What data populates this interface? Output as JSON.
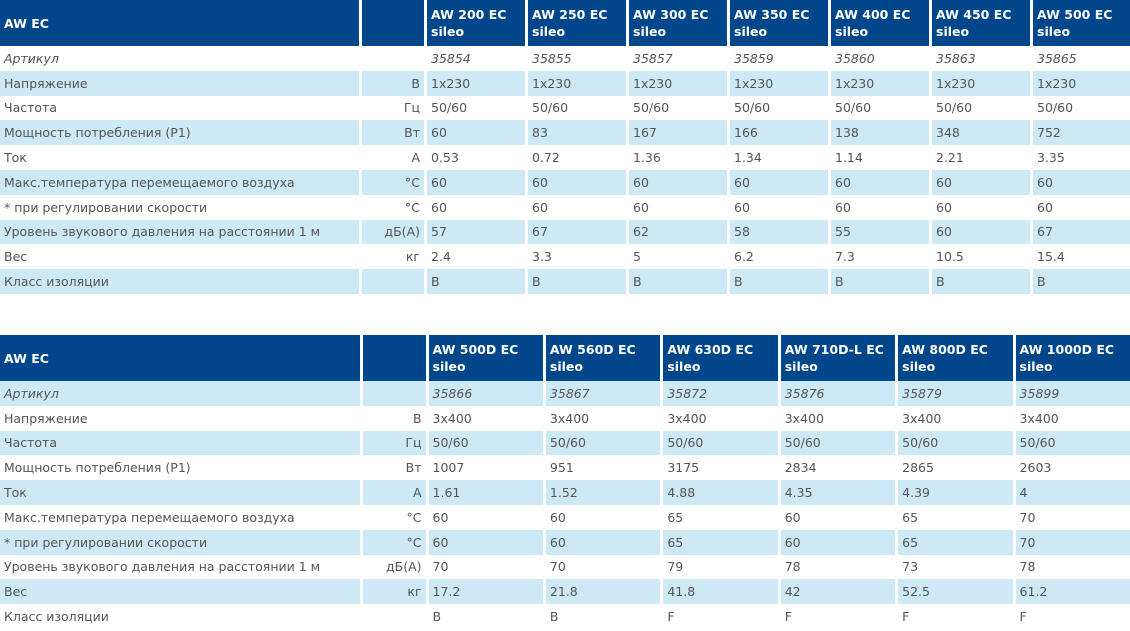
{
  "table1": {
    "title": "AW EC",
    "models": [
      "AW 200 EC|sileo",
      "AW 250 EC|sileo",
      "AW 300 EC|sileo",
      "AW 350 EC|sileo",
      "AW 400 EC|sileo",
      "AW 450 EC|sileo",
      "AW 500 EC|sileo"
    ],
    "rows": [
      {
        "label": "Артикул",
        "unit": "",
        "values": [
          "35854",
          "35855",
          "35857",
          "35859",
          "35860",
          "35863",
          "35865"
        ]
      },
      {
        "label": "Напряжение",
        "unit": "В",
        "values": [
          "1x230",
          "1x230",
          "1x230",
          "1x230",
          "1x230",
          "1x230",
          "1x230"
        ]
      },
      {
        "label": "Частота",
        "unit": "Гц",
        "values": [
          "50/60",
          "50/60",
          "50/60",
          "50/60",
          "50/60",
          "50/60",
          "50/60"
        ]
      },
      {
        "label": "Мощность потребления (P1)",
        "unit": "Вт",
        "values": [
          "60",
          "83",
          "167",
          "166",
          "138",
          "348",
          "752"
        ]
      },
      {
        "label": "Ток",
        "unit": "А",
        "values": [
          "0.53",
          "0.72",
          "1.36",
          "1.34",
          "1.14",
          "2.21",
          "3.35"
        ]
      },
      {
        "label": "Макс.температура перемещаемого воздуха",
        "unit": "°C",
        "values": [
          "60",
          "60",
          "60",
          "60",
          "60",
          "60",
          "60"
        ]
      },
      {
        "label": "* при регулировании скорости",
        "unit": "°C",
        "values": [
          "60",
          "60",
          "60",
          "60",
          "60",
          "60",
          "60"
        ]
      },
      {
        "label": "Уровень звукового давления на расстоянии 1 м",
        "unit": "дБ(А)",
        "values": [
          "57",
          "67",
          "62",
          "58",
          "55",
          "60",
          "67"
        ]
      },
      {
        "label": "Вес",
        "unit": "кг",
        "values": [
          "2.4",
          "3.3",
          "5",
          "6.2",
          "7.3",
          "10.5",
          "15.4"
        ]
      },
      {
        "label": "Класс изоляции",
        "unit": "",
        "values": [
          "B",
          "B",
          "B",
          "B",
          "B",
          "B",
          "B"
        ]
      }
    ]
  },
  "table2": {
    "title": "AW EC",
    "models": [
      "AW 500D EC|sileo",
      "AW 560D EC|sileo",
      "AW 630D EC|sileo",
      "AW 710D-L EC|sileo",
      "AW 800D EC|sileo",
      "AW 1000D EC|sileo"
    ],
    "rows": [
      {
        "label": "Артикул",
        "unit": "",
        "values": [
          "35866",
          "35867",
          "35872",
          "35876",
          "35879",
          "35899"
        ]
      },
      {
        "label": "Напряжение",
        "unit": "В",
        "values": [
          "3x400",
          "3x400",
          "3x400",
          "3x400",
          "3x400",
          "3x400"
        ]
      },
      {
        "label": "Частота",
        "unit": "Гц",
        "values": [
          "50/60",
          "50/60",
          "50/60",
          "50/60",
          "50/60",
          "50/60"
        ]
      },
      {
        "label": "Мощность потребления (P1)",
        "unit": "Вт",
        "values": [
          "1007",
          "951",
          "3175",
          "2834",
          "2865",
          "2603"
        ]
      },
      {
        "label": "Ток",
        "unit": "А",
        "values": [
          "1.61",
          "1.52",
          "4.88",
          "4.35",
          "4.39",
          "4"
        ]
      },
      {
        "label": "Макс.температура перемещаемого воздуха",
        "unit": "°C",
        "values": [
          "60",
          "60",
          "65",
          "60",
          "65",
          "70"
        ]
      },
      {
        "label": "* при регулировании скорости",
        "unit": "°C",
        "values": [
          "60",
          "60",
          "65",
          "60",
          "65",
          "70"
        ]
      },
      {
        "label": "Уровень звукового давления на расстоянии 1 м",
        "unit": "дБ(А)",
        "values": [
          "70",
          "70",
          "79",
          "78",
          "73",
          "78"
        ]
      },
      {
        "label": "Вес",
        "unit": "кг",
        "values": [
          "17.2",
          "21.8",
          "41.8",
          "42",
          "52.5",
          "61.2"
        ]
      },
      {
        "label": "Класс изоляции",
        "unit": "",
        "values": [
          "B",
          "B",
          "F",
          "F",
          "F",
          "F"
        ]
      }
    ]
  }
}
